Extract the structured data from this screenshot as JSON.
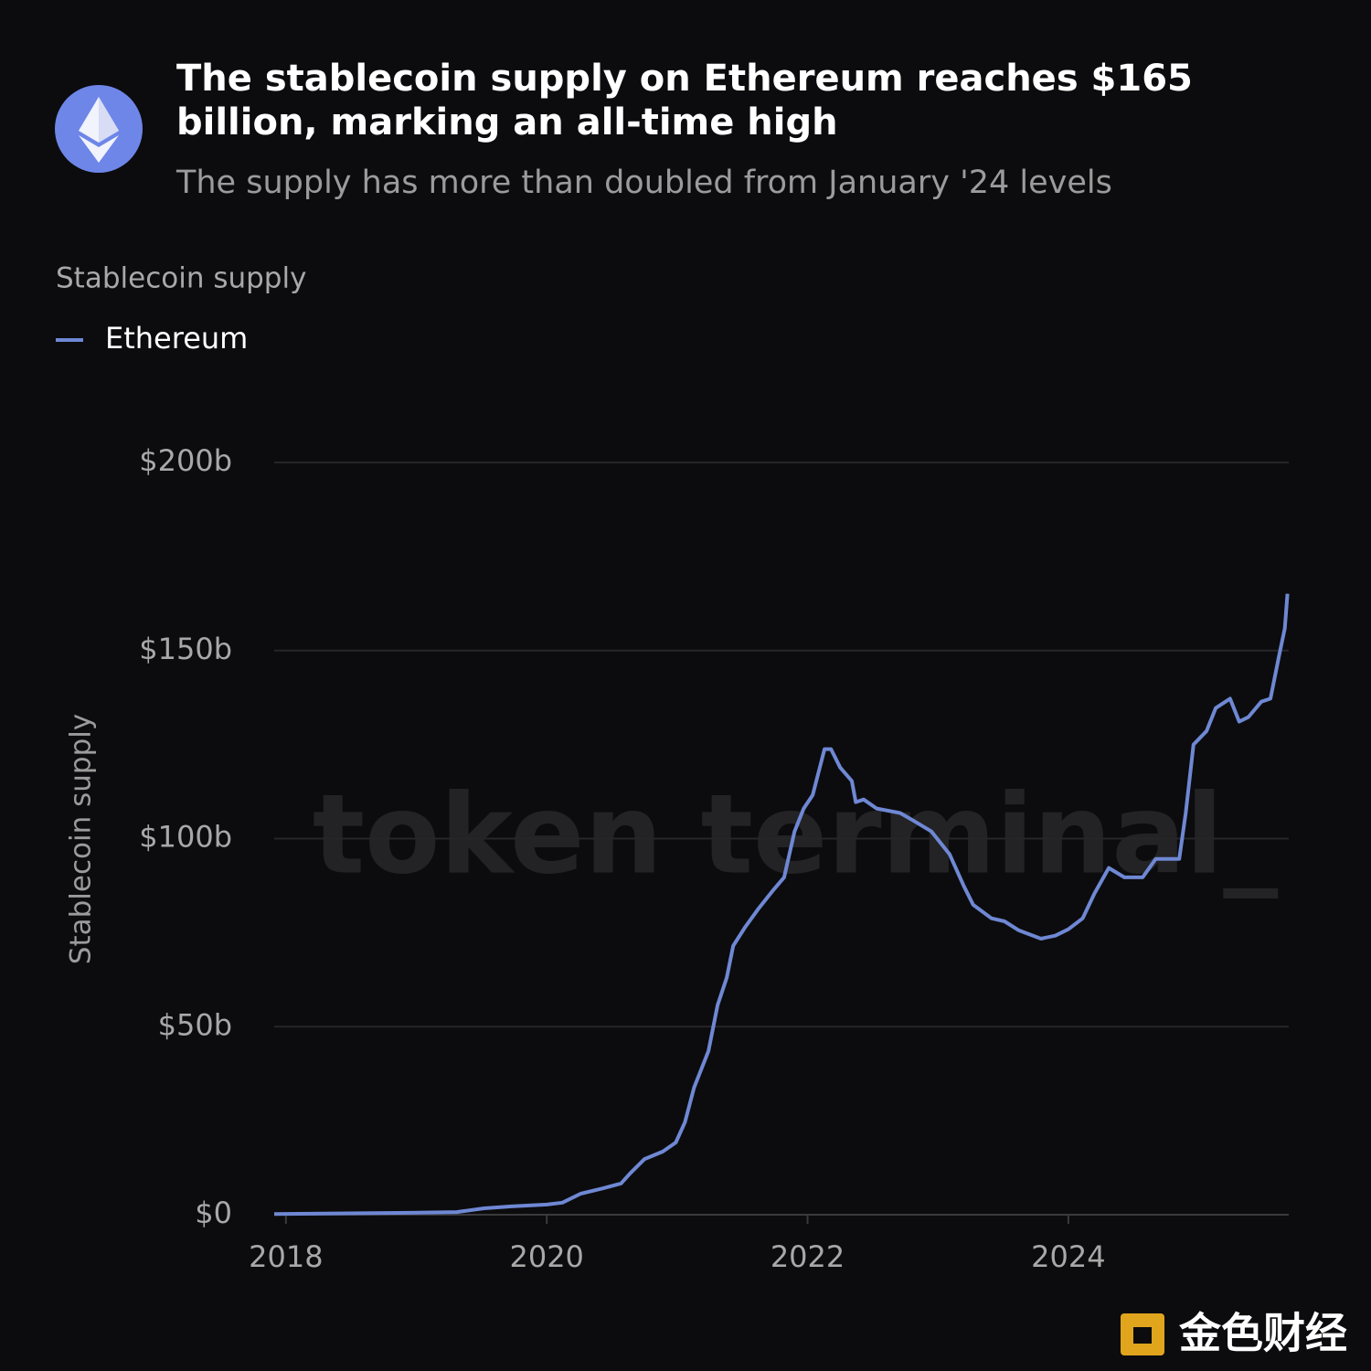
{
  "chart_data": {
    "type": "line",
    "title": "The stablecoin supply on Ethereum reaches $165 billion, marking an all-time high",
    "subtitle": "The supply has more than doubled from January '24 levels",
    "chart_label": "Stablecoin supply",
    "y_axis_label": "Stablecoin supply",
    "watermark": "token terminal_",
    "source_logo": "金色财经",
    "xlim": [
      2017.91,
      2025.69
    ],
    "xticks": [
      2018,
      2020,
      2022,
      2024
    ],
    "ylim": [
      0,
      200
    ],
    "yticks": [
      {
        "value": 0,
        "label": "$0"
      },
      {
        "value": 50,
        "label": "$50b"
      },
      {
        "value": 100,
        "label": "$100b"
      },
      {
        "value": 150,
        "label": "$150b"
      },
      {
        "value": 200,
        "label": "$200b"
      }
    ],
    "grid": true,
    "legend": "top-left",
    "x": [
      2017.91,
      2018.96,
      2019.31,
      2019.52,
      2019.73,
      2020.0,
      2020.12,
      2020.26,
      2020.43,
      2020.57,
      2020.64,
      2020.75,
      2020.89,
      2020.99,
      2021.06,
      2021.13,
      2021.24,
      2021.31,
      2021.38,
      2021.43,
      2021.52,
      2021.62,
      2021.73,
      2021.82,
      2021.9,
      2021.97,
      2022.04,
      2022.13,
      2022.18,
      2022.25,
      2022.34,
      2022.37,
      2022.43,
      2022.53,
      2022.71,
      2022.81,
      2022.95,
      2023.09,
      2023.2,
      2023.27,
      2023.41,
      2023.51,
      2023.62,
      2023.79,
      2023.9,
      2024.0,
      2024.11,
      2024.2,
      2024.31,
      2024.43,
      2024.57,
      2024.67,
      2024.85,
      2024.9,
      2024.96,
      2025.06,
      2025.13,
      2025.24,
      2025.31,
      2025.38,
      2025.48,
      2025.55,
      2025.62,
      2025.66,
      2025.68
    ],
    "series": [
      {
        "name": "Ethereum",
        "color": "#6f88d4",
        "values": [
          0.2,
          0.5,
          0.7,
          1.7,
          2.2,
          2.7,
          3.2,
          5.6,
          7,
          8.3,
          11,
          14.8,
          16.8,
          19.2,
          24.6,
          33.8,
          43.5,
          55.7,
          63,
          71.5,
          76.4,
          81.2,
          86,
          89.7,
          101.9,
          108,
          111.6,
          123.8,
          123.8,
          118.9,
          115.3,
          109.7,
          110.4,
          108,
          106.8,
          104.8,
          101.9,
          95.8,
          87.3,
          82.4,
          78.8,
          78,
          75.6,
          73.4,
          74.2,
          75.9,
          78.8,
          85.4,
          92.2,
          89.7,
          89.7,
          94.6,
          94.6,
          106.8,
          125,
          128.6,
          134.7,
          137.2,
          131.1,
          132.3,
          136.4,
          137.2,
          149.3,
          155.9,
          165.1
        ]
      }
    ]
  }
}
